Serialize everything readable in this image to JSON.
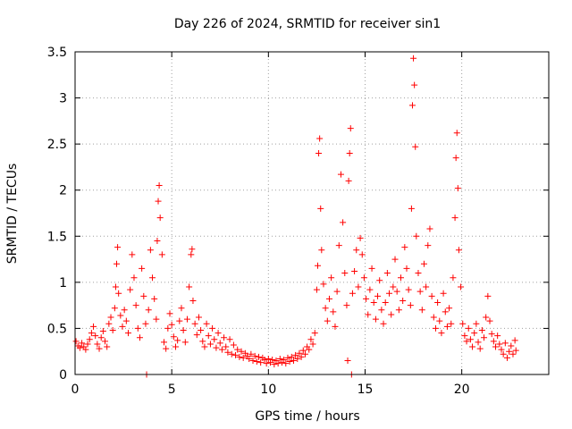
{
  "chart_data": {
    "type": "scatter",
    "title": "Day 226 of 2024, SRMTID for receiver sin1",
    "xlabel": "GPS time / hours",
    "ylabel": "SRMTID / TECUs",
    "xlim": [
      0,
      24.5
    ],
    "ylim": [
      0,
      3.5
    ],
    "xticks": [
      0,
      5,
      10,
      15,
      20
    ],
    "xtick_labels": [
      "0",
      "5",
      "10",
      "15",
      "20"
    ],
    "yticks": [
      0,
      0.5,
      1,
      1.5,
      2,
      2.5,
      3,
      3.5
    ],
    "ytick_labels": [
      "0",
      "0.5",
      "1",
      "1.5",
      "2",
      "2.5",
      "3",
      "3.5"
    ],
    "grid": true,
    "marker": "+",
    "color": "#ff0000",
    "series": [
      {
        "name": "sin1",
        "points": [
          [
            0.05,
            0.36
          ],
          [
            0.15,
            0.31
          ],
          [
            0.25,
            0.29
          ],
          [
            0.35,
            0.34
          ],
          [
            0.45,
            0.3
          ],
          [
            0.55,
            0.27
          ],
          [
            0.65,
            0.33
          ],
          [
            0.75,
            0.38
          ],
          [
            0.85,
            0.45
          ],
          [
            0.95,
            0.52
          ],
          [
            1.05,
            0.42
          ],
          [
            1.15,
            0.33
          ],
          [
            1.25,
            0.28
          ],
          [
            1.35,
            0.4
          ],
          [
            1.45,
            0.47
          ],
          [
            1.55,
            0.36
          ],
          [
            1.65,
            0.3
          ],
          [
            1.75,
            0.55
          ],
          [
            1.85,
            0.62
          ],
          [
            1.95,
            0.48
          ],
          [
            2.05,
            0.72
          ],
          [
            2.1,
            0.95
          ],
          [
            2.15,
            1.2
          ],
          [
            2.2,
            1.38
          ],
          [
            2.25,
            0.88
          ],
          [
            2.35,
            0.64
          ],
          [
            2.45,
            0.52
          ],
          [
            2.55,
            0.7
          ],
          [
            2.65,
            0.58
          ],
          [
            2.75,
            0.45
          ],
          [
            2.85,
            0.92
          ],
          [
            2.95,
            1.3
          ],
          [
            3.05,
            1.05
          ],
          [
            3.15,
            0.75
          ],
          [
            3.25,
            0.5
          ],
          [
            3.35,
            0.4
          ],
          [
            3.45,
            1.15
          ],
          [
            3.55,
            0.85
          ],
          [
            3.65,
            0.55
          ],
          [
            3.7,
            0.0
          ],
          [
            3.8,
            0.7
          ],
          [
            3.9,
            1.35
          ],
          [
            4.0,
            1.05
          ],
          [
            4.1,
            0.82
          ],
          [
            4.2,
            0.6
          ],
          [
            4.25,
            1.45
          ],
          [
            4.3,
            1.88
          ],
          [
            4.35,
            2.05
          ],
          [
            4.4,
            1.7
          ],
          [
            4.5,
            1.3
          ],
          [
            4.6,
            0.35
          ],
          [
            4.7,
            0.28
          ],
          [
            4.8,
            0.5
          ],
          [
            4.9,
            0.66
          ],
          [
            5.0,
            0.54
          ],
          [
            5.1,
            0.41
          ],
          [
            5.2,
            0.3
          ],
          [
            5.3,
            0.37
          ],
          [
            5.4,
            0.58
          ],
          [
            5.5,
            0.72
          ],
          [
            5.6,
            0.48
          ],
          [
            5.7,
            0.35
          ],
          [
            5.8,
            0.6
          ],
          [
            5.9,
            0.95
          ],
          [
            6.0,
            1.3
          ],
          [
            6.05,
            1.36
          ],
          [
            6.1,
            0.8
          ],
          [
            6.2,
            0.55
          ],
          [
            6.3,
            0.43
          ],
          [
            6.4,
            0.62
          ],
          [
            6.5,
            0.48
          ],
          [
            6.6,
            0.36
          ],
          [
            6.7,
            0.3
          ],
          [
            6.8,
            0.55
          ],
          [
            6.9,
            0.42
          ],
          [
            7.0,
            0.33
          ],
          [
            7.1,
            0.5
          ],
          [
            7.2,
            0.38
          ],
          [
            7.3,
            0.29
          ],
          [
            7.4,
            0.45
          ],
          [
            7.5,
            0.34
          ],
          [
            7.6,
            0.27
          ],
          [
            7.7,
            0.4
          ],
          [
            7.8,
            0.3
          ],
          [
            7.9,
            0.24
          ],
          [
            8.0,
            0.38
          ],
          [
            8.1,
            0.22
          ],
          [
            8.2,
            0.32
          ],
          [
            8.3,
            0.21
          ],
          [
            8.4,
            0.27
          ],
          [
            8.5,
            0.19
          ],
          [
            8.6,
            0.25
          ],
          [
            8.7,
            0.18
          ],
          [
            8.8,
            0.23
          ],
          [
            8.9,
            0.2
          ],
          [
            9.0,
            0.17
          ],
          [
            9.1,
            0.22
          ],
          [
            9.2,
            0.15
          ],
          [
            9.3,
            0.2
          ],
          [
            9.4,
            0.14
          ],
          [
            9.5,
            0.19
          ],
          [
            9.6,
            0.13
          ],
          [
            9.7,
            0.18
          ],
          [
            9.8,
            0.16
          ],
          [
            9.9,
            0.12
          ],
          [
            10.0,
            0.17
          ],
          [
            10.1,
            0.13
          ],
          [
            10.2,
            0.16
          ],
          [
            10.3,
            0.11
          ],
          [
            10.4,
            0.15
          ],
          [
            10.5,
            0.12
          ],
          [
            10.6,
            0.17
          ],
          [
            10.7,
            0.13
          ],
          [
            10.8,
            0.16
          ],
          [
            10.9,
            0.12
          ],
          [
            11.0,
            0.18
          ],
          [
            11.1,
            0.14
          ],
          [
            11.2,
            0.19
          ],
          [
            11.3,
            0.15
          ],
          [
            11.4,
            0.21
          ],
          [
            11.5,
            0.17
          ],
          [
            11.6,
            0.23
          ],
          [
            11.7,
            0.19
          ],
          [
            11.8,
            0.26
          ],
          [
            11.9,
            0.22
          ],
          [
            12.0,
            0.3
          ],
          [
            12.1,
            0.27
          ],
          [
            12.2,
            0.38
          ],
          [
            12.3,
            0.33
          ],
          [
            12.4,
            0.45
          ],
          [
            12.5,
            0.92
          ],
          [
            12.55,
            1.18
          ],
          [
            12.6,
            2.4
          ],
          [
            12.65,
            2.56
          ],
          [
            12.7,
            1.8
          ],
          [
            12.75,
            1.35
          ],
          [
            12.85,
            0.98
          ],
          [
            12.95,
            0.72
          ],
          [
            13.05,
            0.58
          ],
          [
            13.15,
            0.82
          ],
          [
            13.25,
            1.05
          ],
          [
            13.35,
            0.68
          ],
          [
            13.45,
            0.52
          ],
          [
            13.55,
            0.9
          ],
          [
            13.65,
            1.4
          ],
          [
            13.75,
            2.17
          ],
          [
            13.85,
            1.65
          ],
          [
            13.95,
            1.1
          ],
          [
            14.05,
            0.75
          ],
          [
            14.1,
            0.15
          ],
          [
            14.15,
            2.1
          ],
          [
            14.2,
            2.4
          ],
          [
            14.25,
            2.67
          ],
          [
            14.3,
            0.0
          ],
          [
            14.35,
            0.88
          ],
          [
            14.45,
            1.12
          ],
          [
            14.55,
            1.35
          ],
          [
            14.65,
            0.95
          ],
          [
            14.75,
            1.48
          ],
          [
            14.85,
            1.3
          ],
          [
            14.95,
            1.05
          ],
          [
            15.05,
            0.82
          ],
          [
            15.15,
            0.65
          ],
          [
            15.25,
            0.92
          ],
          [
            15.35,
            1.15
          ],
          [
            15.45,
            0.78
          ],
          [
            15.55,
            0.6
          ],
          [
            15.65,
            0.85
          ],
          [
            15.75,
            1.02
          ],
          [
            15.85,
            0.7
          ],
          [
            15.95,
            0.55
          ],
          [
            16.05,
            0.78
          ],
          [
            16.15,
            1.1
          ],
          [
            16.25,
            0.88
          ],
          [
            16.35,
            0.65
          ],
          [
            16.45,
            0.95
          ],
          [
            16.55,
            1.25
          ],
          [
            16.65,
            0.9
          ],
          [
            16.75,
            0.7
          ],
          [
            16.85,
            1.05
          ],
          [
            16.95,
            0.8
          ],
          [
            17.05,
            1.38
          ],
          [
            17.15,
            1.15
          ],
          [
            17.25,
            0.92
          ],
          [
            17.35,
            0.75
          ],
          [
            17.4,
            1.8
          ],
          [
            17.45,
            2.92
          ],
          [
            17.5,
            3.43
          ],
          [
            17.55,
            3.14
          ],
          [
            17.6,
            2.47
          ],
          [
            17.65,
            1.5
          ],
          [
            17.75,
            1.1
          ],
          [
            17.85,
            0.9
          ],
          [
            17.95,
            0.7
          ],
          [
            18.05,
            1.2
          ],
          [
            18.15,
            0.95
          ],
          [
            18.25,
            1.4
          ],
          [
            18.35,
            1.58
          ],
          [
            18.45,
            0.85
          ],
          [
            18.55,
            0.62
          ],
          [
            18.65,
            0.5
          ],
          [
            18.75,
            0.78
          ],
          [
            18.85,
            0.58
          ],
          [
            18.95,
            0.45
          ],
          [
            19.05,
            0.88
          ],
          [
            19.15,
            0.68
          ],
          [
            19.25,
            0.52
          ],
          [
            19.35,
            0.72
          ],
          [
            19.45,
            0.55
          ],
          [
            19.55,
            1.05
          ],
          [
            19.65,
            1.7
          ],
          [
            19.7,
            2.35
          ],
          [
            19.75,
            2.62
          ],
          [
            19.8,
            2.02
          ],
          [
            19.85,
            1.35
          ],
          [
            19.95,
            0.95
          ],
          [
            20.05,
            0.55
          ],
          [
            20.15,
            0.42
          ],
          [
            20.25,
            0.36
          ],
          [
            20.35,
            0.5
          ],
          [
            20.45,
            0.38
          ],
          [
            20.55,
            0.3
          ],
          [
            20.65,
            0.45
          ],
          [
            20.75,
            0.55
          ],
          [
            20.85,
            0.35
          ],
          [
            20.95,
            0.28
          ],
          [
            21.05,
            0.48
          ],
          [
            21.15,
            0.4
          ],
          [
            21.25,
            0.62
          ],
          [
            21.35,
            0.85
          ],
          [
            21.45,
            0.58
          ],
          [
            21.55,
            0.44
          ],
          [
            21.65,
            0.36
          ],
          [
            21.75,
            0.3
          ],
          [
            21.85,
            0.42
          ],
          [
            21.95,
            0.33
          ],
          [
            22.05,
            0.27
          ],
          [
            22.15,
            0.22
          ],
          [
            22.25,
            0.34
          ],
          [
            22.35,
            0.18
          ],
          [
            22.45,
            0.25
          ],
          [
            22.55,
            0.31
          ],
          [
            22.65,
            0.22
          ],
          [
            22.75,
            0.37
          ],
          [
            22.8,
            0.26
          ]
        ]
      }
    ]
  }
}
